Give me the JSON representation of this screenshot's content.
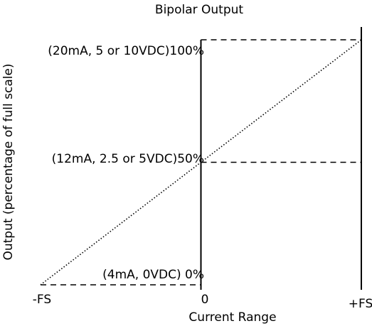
{
  "chart_data": {
    "type": "line",
    "title": "Bipolar Output",
    "xlabel": "Current Range",
    "ylabel": "Output  (percentage of full scale)",
    "x_tick_labels": [
      "-FS",
      "0",
      "+FS"
    ],
    "x_ticks": [
      -1,
      0,
      1
    ],
    "xlim": [
      -1,
      1
    ],
    "ylim": [
      0,
      100
    ],
    "y_annotations": [
      {
        "label": "(20mA, 5 or 10VDC)100%",
        "value": 100
      },
      {
        "label": "(12mA, 2.5 or 5VDC)50%",
        "value": 50
      },
      {
        "label": "(4mA, 0VDC) 0%",
        "value": 0
      }
    ],
    "series": [
      {
        "x": [
          -1,
          0,
          1
        ],
        "y": [
          0,
          50,
          100
        ],
        "style": "dotted"
      }
    ],
    "guides": [
      {
        "from": [
          -1,
          0
        ],
        "to": [
          0,
          0
        ],
        "style": "dashed"
      },
      {
        "from": [
          0,
          50
        ],
        "to": [
          1,
          50
        ],
        "style": "dashed"
      },
      {
        "from": [
          0,
          100
        ],
        "to": [
          1,
          100
        ],
        "style": "dashed"
      }
    ],
    "grid": false,
    "legend": "none"
  }
}
